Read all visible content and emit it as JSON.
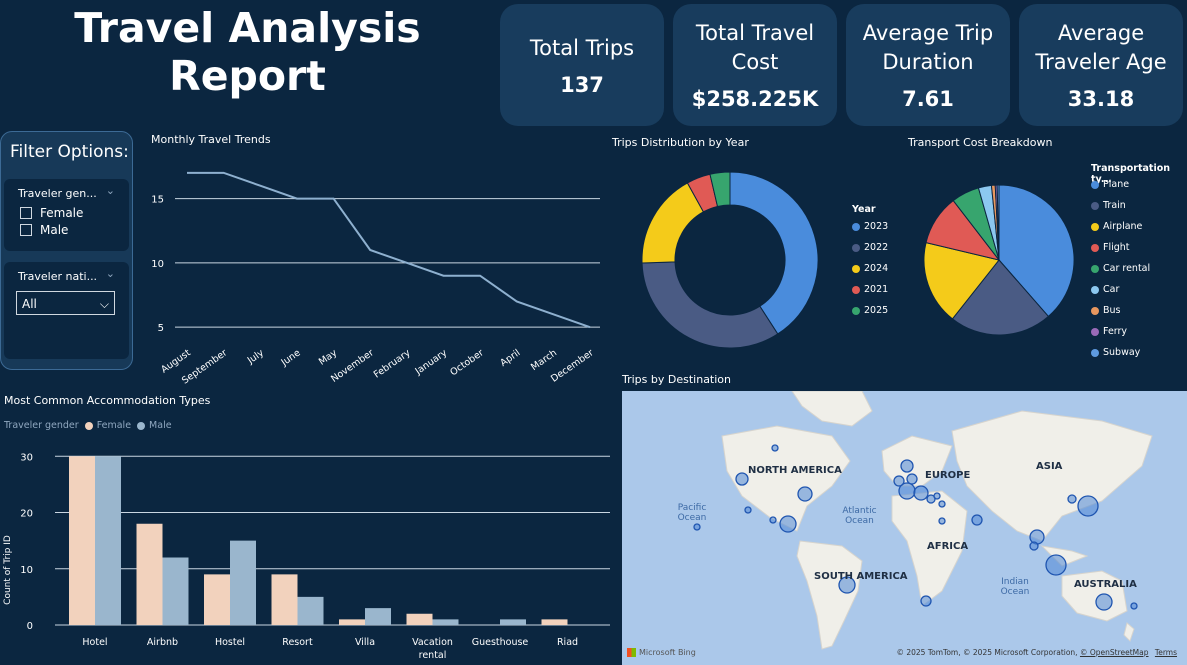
{
  "header": {
    "title_line1": "Travel Analysis",
    "title_line2": "Report"
  },
  "kpis": [
    {
      "label_line1": "Total Trips",
      "label_line2": "",
      "value": "137"
    },
    {
      "label_line1": "Total Travel",
      "label_line2": "Cost",
      "value": "$258.225K"
    },
    {
      "label_line1": "Average Trip",
      "label_line2": "Duration",
      "value": "7.61"
    },
    {
      "label_line1": "Average",
      "label_line2": "Traveler Age",
      "value": "33.18"
    }
  ],
  "filters": {
    "title": "Filter Options:",
    "gender": {
      "label": "Traveler gen...",
      "options": [
        "Female",
        "Male"
      ]
    },
    "nationality": {
      "label": "Traveler nati...",
      "selected": "All"
    }
  },
  "colors": {
    "bg": "#0b2640",
    "card": "#183c5d",
    "line": "#8eb0cf",
    "female": "#f2d2bd",
    "male": "#9ab6cd",
    "blue": "#4a8cdc",
    "navy": "#4a5b84",
    "yellow": "#f4cb1a",
    "red": "#e05a55",
    "green": "#37a56e",
    "lightblue": "#8cc8f0",
    "orange": "#e8975f",
    "purple": "#9a6ab8",
    "blue2": "#5e9ae0"
  },
  "chart_data": [
    {
      "type": "line",
      "title": "Monthly Travel Trends",
      "categories": [
        "August",
        "September",
        "July",
        "June",
        "May",
        "November",
        "February",
        "January",
        "October",
        "April",
        "March",
        "December"
      ],
      "values": [
        17,
        17,
        16,
        15,
        15,
        11,
        10,
        9,
        9,
        7,
        6,
        5
      ],
      "yticks": [
        5,
        10,
        15
      ],
      "ylim": [
        4,
        18
      ]
    },
    {
      "type": "pie",
      "title": "Trips Distribution by Year",
      "donut": true,
      "legend_title": "Year",
      "labels": [
        "2023",
        "2022",
        "2024",
        "2021",
        "2025"
      ],
      "values": [
        56,
        46,
        24,
        6,
        5
      ],
      "colors": [
        "#4a8cdc",
        "#4a5b84",
        "#f4cb1a",
        "#e05a55",
        "#37a56e"
      ]
    },
    {
      "type": "pie",
      "title": "Transport Cost Breakdown",
      "legend_title": "Transportation ty...",
      "labels": [
        "Plane",
        "Train",
        "Airplane",
        "Flight",
        "Car rental",
        "Car",
        "Bus",
        "Ferry",
        "Subway"
      ],
      "values": [
        96,
        55,
        45,
        27,
        15,
        7,
        2,
        1,
        1
      ],
      "colors": [
        "#4a8cdc",
        "#4a5b84",
        "#f4cb1a",
        "#e05a55",
        "#37a56e",
        "#8cc8f0",
        "#e8975f",
        "#9a6ab8",
        "#5e9ae0"
      ]
    },
    {
      "type": "bar",
      "title": "Most Common Accommodation Types",
      "legend_title": "Traveler gender",
      "categories": [
        "Hotel",
        "Airbnb",
        "Hostel",
        "Resort",
        "Villa",
        "Vacation rental",
        "Guesthouse",
        "Riad"
      ],
      "series": [
        {
          "name": "Female",
          "values": [
            30,
            18,
            9,
            9,
            1,
            2,
            0,
            1
          ]
        },
        {
          "name": "Male",
          "values": [
            30,
            12,
            15,
            5,
            3,
            1,
            1,
            0
          ]
        }
      ],
      "ylabel": "Count of Trip ID",
      "yticks": [
        0,
        10,
        20,
        30
      ],
      "ylim": [
        0,
        32
      ]
    }
  ],
  "map": {
    "title": "Trips by Destination",
    "continents": [
      "NORTH AMERICA",
      "EUROPE",
      "ASIA",
      "AFRICA",
      "SOUTH AMERICA",
      "AUSTRALIA"
    ],
    "oceans": [
      "Pacific Ocean",
      "Atlantic Ocean",
      "Indian Ocean"
    ],
    "provider": "Microsoft Bing",
    "copyright": "© 2025 TomTom, © 2025 Microsoft Corporation,",
    "osm": "© OpenStreetMap",
    "terms": "Terms"
  }
}
